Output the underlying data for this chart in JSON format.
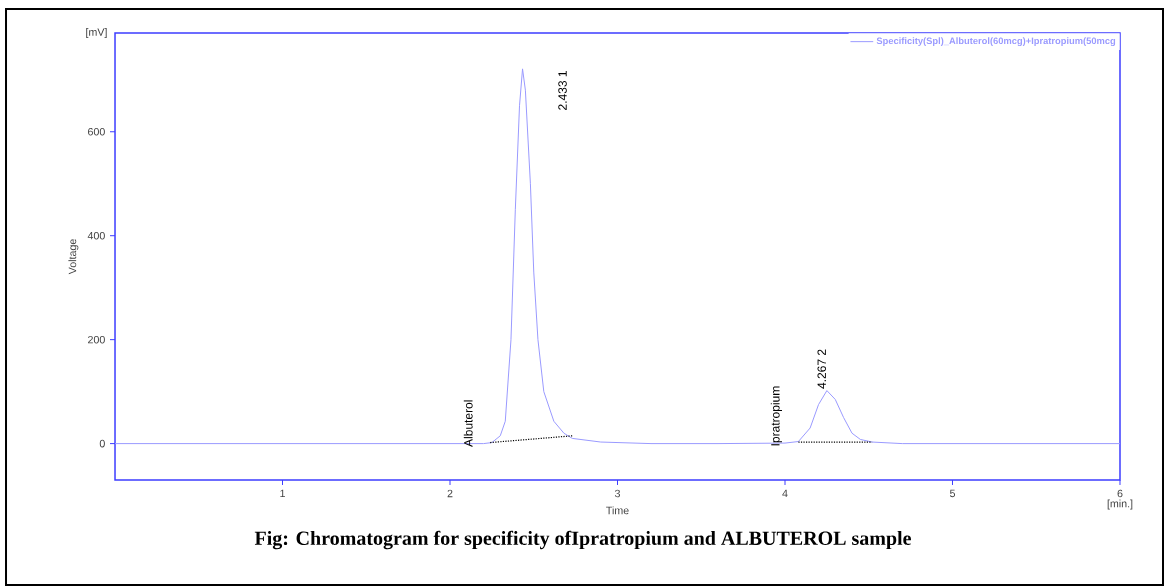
{
  "chart_data": {
    "type": "line",
    "title": "Fig: Chromatogram for specificity ofIpratropium and ALBUTEROL sample",
    "xlabel": "Time",
    "ylabel": "Voltage",
    "xlim": [
      0,
      6
    ],
    "ylim": [
      -70,
      790
    ],
    "xticks": [
      1,
      2,
      3,
      4,
      5,
      6
    ],
    "yticks": [
      0,
      200,
      400,
      600
    ],
    "legend": "top right",
    "marker": "none",
    "series": [
      {
        "name": "Specificity(Spl)_Albuterol(60mcg)+Ipratropium(50mcg",
        "color": "#9a9aff",
        "line_style": "solid",
        "x": [
          0,
          1,
          2,
          2.2,
          2.25,
          2.3,
          2.33,
          2.364,
          2.39,
          2.415,
          2.433,
          2.45,
          2.48,
          2.5,
          2.525,
          2.56,
          2.62,
          2.68,
          2.73,
          2.9,
          3.2,
          3.6,
          4.0,
          4.08,
          4.15,
          4.2,
          4.25,
          4.3,
          4.35,
          4.4,
          4.45,
          4.52,
          4.7,
          5,
          6
        ],
        "values": [
          0,
          0,
          0,
          0,
          2,
          15,
          43,
          200,
          450,
          650,
          721,
          680,
          500,
          330,
          200,
          100,
          43,
          20,
          10,
          3,
          0,
          0,
          1,
          4,
          30,
          75,
          102,
          85,
          50,
          20,
          8,
          3,
          0,
          0,
          0
        ]
      },
      {
        "color": "#000000",
        "line_style": "dotted",
        "x": [
          2.24,
          2.73
        ],
        "values": [
          2,
          15
        ]
      },
      {
        "color": "#000000",
        "line_style": "dotted",
        "x": [
          4.08,
          4.52
        ],
        "values": [
          3,
          3
        ]
      }
    ],
    "annotations": [
      {
        "text": "2.433  1",
        "x": 2.433,
        "y": 721
      },
      {
        "text": "4.267  2",
        "x": 4.267,
        "y": 102
      },
      {
        "text": "Albuterol",
        "x": 2.24,
        "y": 2
      },
      {
        "text": "Ipratropium",
        "x": 4.08,
        "y": 3
      },
      "[mV]",
      "[min.]"
    ]
  }
}
